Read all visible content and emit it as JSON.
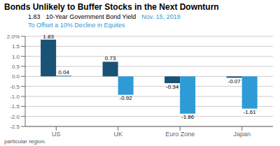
{
  "chart_data": {
    "type": "bar",
    "title": "Bonds Unlikely to Buffer Stocks in the Next Downturn",
    "categories": [
      "US",
      "UK",
      "Euro Zone",
      "Japan"
    ],
    "series": [
      {
        "color": "#1a5276",
        "values": [
          1.83,
          0.73,
          -0.34,
          -0.07
        ]
      },
      {
        "color": "#2e9bd6",
        "values": [
          0.04,
          -0.92,
          -1.86,
          -1.61
        ]
      }
    ],
    "ylim": [
      -2.5,
      2.0
    ],
    "yticks": [
      -2.5,
      {
        "value": -2.0,
        "label": "-2.0"
      },
      -1.5,
      {
        "value": -1.0,
        "label": "-1.0"
      },
      -0.5,
      {
        "value": 0.0,
        "label": "0.0"
      },
      0.5,
      {
        "value": 1.0,
        "label": "1.0"
      },
      1.5,
      {
        "value": 2.0,
        "label": "2.0%"
      }
    ],
    "grid": true,
    "data_labels": true,
    "annotations": [
      {
        "text": "1.83"
      },
      {
        "text": "10-Year Government Bond Yield"
      },
      {
        "text": "Nov. 15, 2019",
        "color": "#2e9bd6"
      },
      {
        "text": "To Offset a 10% Decline in Equites",
        "color": "#2e9bd6"
      }
    ],
    "footnote": "particular region."
  }
}
